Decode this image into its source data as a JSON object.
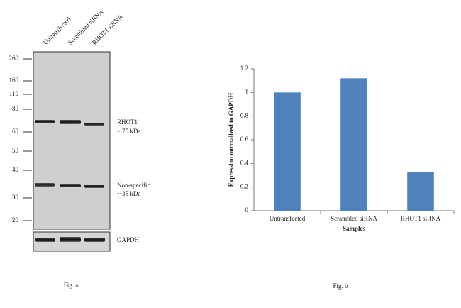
{
  "blot": {
    "lanes": [
      "Untransfected",
      "Scrambled siRNA",
      "RHOT1 siRNA"
    ],
    "markers": [
      260,
      160,
      110,
      80,
      60,
      50,
      40,
      30,
      20
    ],
    "band_labels": [
      [
        "RHOT1",
        "~ 75 kDa"
      ],
      [
        "Non-specific",
        "~ 35 kDa"
      ]
    ],
    "control_label": "GAPDH",
    "caption": "Fig. a"
  },
  "chart_data": {
    "type": "bar",
    "categories": [
      "Untransfected",
      "Scrambled siRNA",
      "RHOT1 siRNA"
    ],
    "values": [
      1,
      1.12,
      0.33
    ],
    "color": "#4f81bd",
    "ylim": [
      0,
      1.2
    ],
    "yticks": [
      0,
      0.2,
      0.4,
      0.6,
      0.8,
      1,
      1.2
    ],
    "x_label": "Samples",
    "y_label": "Expression  normalized to GAPDH",
    "caption": "Fig. b"
  }
}
